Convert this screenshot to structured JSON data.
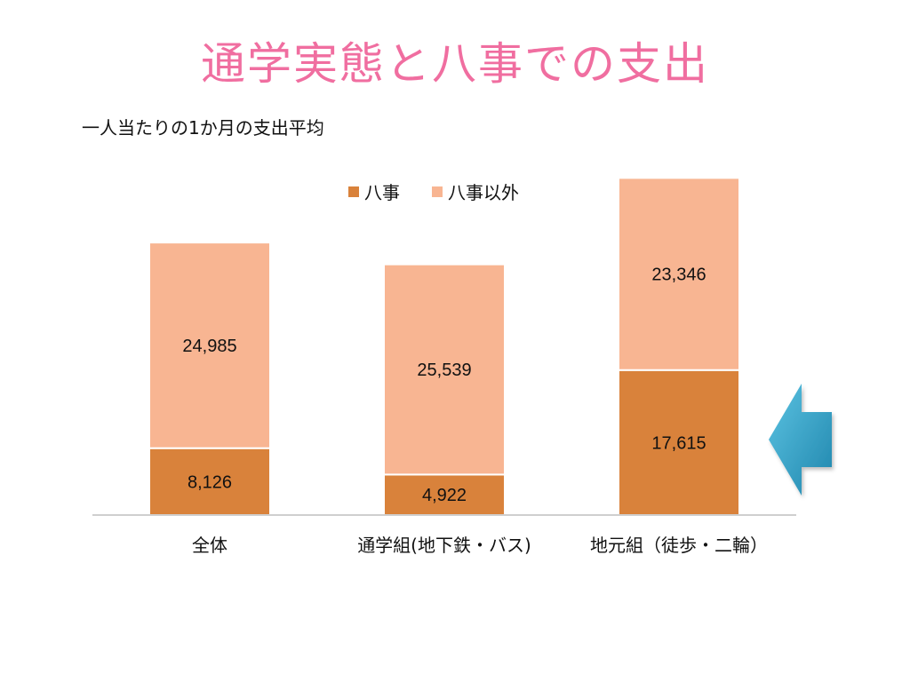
{
  "slide": {
    "title": "通学実態と八事での支出",
    "subtitle": "一人当たりの1か月の支出平均"
  },
  "chart_data": {
    "type": "bar",
    "stacked": true,
    "categories": [
      "全体",
      "通学組(地下鉄・バス)",
      "地元組（徒歩・二輪）"
    ],
    "series": [
      {
        "name": "八事",
        "values": [
          8126,
          4922,
          17615
        ],
        "labels": [
          "8,126",
          "4,922",
          "17,615"
        ],
        "color": "#d9823b"
      },
      {
        "name": "八事以外",
        "values": [
          24985,
          25539,
          23346
        ],
        "labels": [
          "24,985",
          "25,539",
          "23,346"
        ],
        "color": "#f8b592"
      }
    ],
    "ylim": [
      0,
      41000
    ],
    "grid": false,
    "legend_position": "top-center",
    "highlight_arrow": {
      "category": "地元組（徒歩・二輪）",
      "color": "#3ba7cc"
    }
  }
}
